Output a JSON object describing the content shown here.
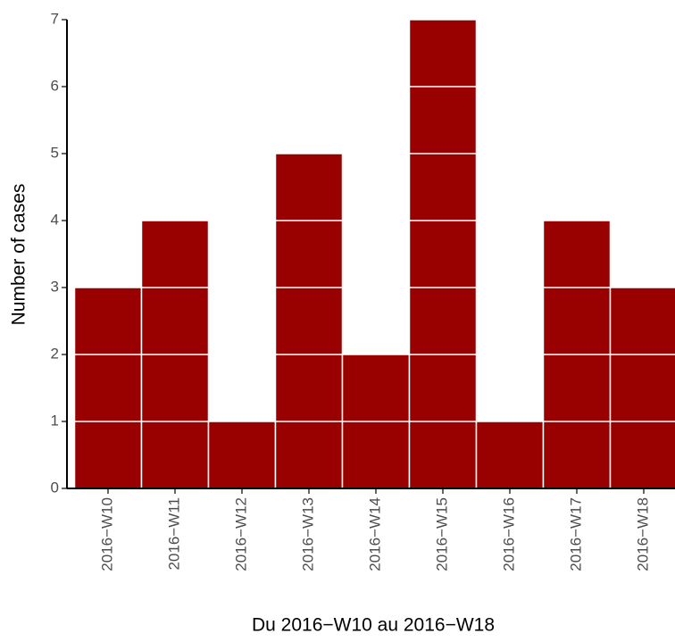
{
  "chart_data": {
    "type": "bar",
    "x_label": "Du 2016−W10 au 2016−W18",
    "y_label": "Number of cases",
    "categories": [
      "2016−W10",
      "2016−W11",
      "2016−W12",
      "2016−W13",
      "2016−W14",
      "2016−W15",
      "2016−W16",
      "2016−W17",
      "2016−W18"
    ],
    "values": [
      3,
      4,
      1,
      5,
      2,
      7,
      1,
      4,
      3
    ],
    "color": "#990000",
    "ylim": [
      0,
      7
    ],
    "yticks": [
      0,
      1,
      2,
      3,
      4,
      5,
      6,
      7
    ],
    "grid": false
  }
}
